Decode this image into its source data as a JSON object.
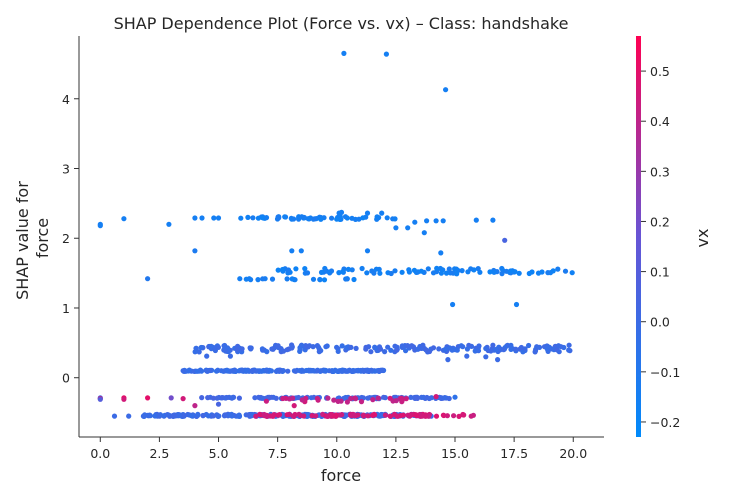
{
  "chart_data": {
    "type": "scatter",
    "title": "SHAP Dependence Plot (Force vs. vx) – Class: handshake",
    "xlabel": "force",
    "ylabel_lines": [
      "SHAP value for",
      "force"
    ],
    "colorbar_label": "vx",
    "xlim": [
      -0.9,
      21.3
    ],
    "ylim": [
      -0.85,
      4.9
    ],
    "x_ticks": [
      0.0,
      2.5,
      5.0,
      7.5,
      10.0,
      12.5,
      15.0,
      17.5,
      20.0
    ],
    "x_tick_labels": [
      "0.0",
      "2.5",
      "5.0",
      "7.5",
      "10.0",
      "12.5",
      "15.0",
      "17.5",
      "20.0"
    ],
    "y_ticks": [
      0,
      1,
      2,
      3,
      4
    ],
    "y_tick_labels": [
      "0",
      "1",
      "2",
      "3",
      "4"
    ],
    "color_range": [
      -0.23,
      0.57
    ],
    "colorbar_ticks": [
      -0.2,
      -0.1,
      0.0,
      0.1,
      0.2,
      0.3,
      0.4,
      0.5
    ],
    "colorbar_tick_labels": [
      "−0.2",
      "−0.1",
      "0.0",
      "0.1",
      "0.2",
      "0.3",
      "0.4",
      "0.5"
    ],
    "colormap": [
      "#008AFA",
      "#6754D5",
      "#FF0052"
    ],
    "grid": false,
    "clusters": [
      {
        "x_min": 3.5,
        "x_max": 12.0,
        "y": 0.1,
        "jitter": 0.01,
        "vx": -0.02,
        "n": 220
      },
      {
        "x_min": 4.0,
        "x_max": 20.3,
        "y": 0.42,
        "jitter": 0.05,
        "vx": 0.0,
        "n": 200
      },
      {
        "x_min": 1.8,
        "x_max": 14.0,
        "y": -0.54,
        "jitter": 0.015,
        "vx": 0.0,
        "n": 260
      },
      {
        "x_min": 6.5,
        "x_max": 15.8,
        "y": -0.54,
        "jitter": 0.015,
        "vx": 0.45,
        "n": 90
      },
      {
        "x_min": 4.2,
        "x_max": 14.8,
        "y": -0.29,
        "jitter": 0.01,
        "vx": 0.02,
        "n": 120
      },
      {
        "x_min": 7.0,
        "x_max": 13.0,
        "y": -0.32,
        "jitter": 0.03,
        "vx": 0.42,
        "n": 30
      },
      {
        "x_min": 5.8,
        "x_max": 12.6,
        "y": 2.29,
        "jitter": 0.02,
        "vx": -0.15,
        "n": 60
      },
      {
        "x_min": 7.5,
        "x_max": 20.0,
        "y": 1.53,
        "jitter": 0.04,
        "vx": -0.15,
        "n": 90
      },
      {
        "x_min": 6.0,
        "x_max": 11.0,
        "y": 1.41,
        "jitter": 0.01,
        "vx": -0.15,
        "n": 18
      }
    ],
    "points": [
      {
        "x": 0.0,
        "y": 2.2,
        "vx": -0.15
      },
      {
        "x": 0.0,
        "y": 2.18,
        "vx": -0.15
      },
      {
        "x": 1.0,
        "y": 2.28,
        "vx": -0.15
      },
      {
        "x": 2.9,
        "y": 2.2,
        "vx": -0.15
      },
      {
        "x": 4.0,
        "y": 2.29,
        "vx": -0.15
      },
      {
        "x": 4.3,
        "y": 2.29,
        "vx": -0.15
      },
      {
        "x": 4.8,
        "y": 2.29,
        "vx": -0.15
      },
      {
        "x": 5.0,
        "y": 2.29,
        "vx": -0.15
      },
      {
        "x": 4.0,
        "y": 1.82,
        "vx": -0.12
      },
      {
        "x": 2.0,
        "y": 1.42,
        "vx": -0.1
      },
      {
        "x": 5.9,
        "y": 1.42,
        "vx": -0.15
      },
      {
        "x": 6.3,
        "y": 1.42,
        "vx": -0.15
      },
      {
        "x": 10.3,
        "y": 4.65,
        "vx": -0.15
      },
      {
        "x": 12.1,
        "y": 4.64,
        "vx": -0.15
      },
      {
        "x": 14.6,
        "y": 4.13,
        "vx": -0.15
      },
      {
        "x": 12.5,
        "y": 2.15,
        "vx": -0.15
      },
      {
        "x": 13.0,
        "y": 2.15,
        "vx": -0.15
      },
      {
        "x": 13.3,
        "y": 2.23,
        "vx": -0.15
      },
      {
        "x": 13.8,
        "y": 2.25,
        "vx": -0.15
      },
      {
        "x": 14.2,
        "y": 2.25,
        "vx": -0.15
      },
      {
        "x": 14.5,
        "y": 2.25,
        "vx": -0.15
      },
      {
        "x": 13.7,
        "y": 2.08,
        "vx": -0.15
      },
      {
        "x": 14.4,
        "y": 1.79,
        "vx": -0.15
      },
      {
        "x": 15.9,
        "y": 2.26,
        "vx": -0.15
      },
      {
        "x": 16.6,
        "y": 2.26,
        "vx": -0.15
      },
      {
        "x": 17.1,
        "y": 1.97,
        "vx": 0.05
      },
      {
        "x": 14.9,
        "y": 1.05,
        "vx": -0.15
      },
      {
        "x": 17.6,
        "y": 1.05,
        "vx": -0.15
      },
      {
        "x": 8.1,
        "y": 1.82,
        "vx": -0.15
      },
      {
        "x": 8.5,
        "y": 1.82,
        "vx": -0.15
      },
      {
        "x": 11.3,
        "y": 1.82,
        "vx": -0.15
      },
      {
        "x": 0.0,
        "y": -0.29,
        "vx": 0.0
      },
      {
        "x": 0.0,
        "y": -0.3,
        "vx": 0.45
      },
      {
        "x": 0.0,
        "y": -0.31,
        "vx": 0.1
      },
      {
        "x": 1.0,
        "y": -0.29,
        "vx": 0.5
      },
      {
        "x": 1.0,
        "y": -0.31,
        "vx": 0.45
      },
      {
        "x": 2.0,
        "y": -0.29,
        "vx": 0.5
      },
      {
        "x": 3.0,
        "y": -0.29,
        "vx": 0.2
      },
      {
        "x": 3.5,
        "y": -0.3,
        "vx": 0.45
      },
      {
        "x": 0.6,
        "y": -0.55,
        "vx": 0.0
      },
      {
        "x": 1.2,
        "y": -0.55,
        "vx": 0.0
      },
      {
        "x": 4.0,
        "y": -0.4,
        "vx": 0.4
      },
      {
        "x": 3.5,
        "y": 0.1,
        "vx": 0.0
      },
      {
        "x": 4.5,
        "y": 0.1,
        "vx": 0.0
      },
      {
        "x": 8.2,
        "y": -0.4,
        "vx": 0.45
      },
      {
        "x": 15.0,
        "y": -0.28,
        "vx": -0.05
      },
      {
        "x": 14.2,
        "y": -0.27,
        "vx": 0.45
      },
      {
        "x": 5.0,
        "y": -0.38,
        "vx": 0.05
      },
      {
        "x": 4.5,
        "y": 0.31,
        "vx": 0.0
      },
      {
        "x": 5.5,
        "y": 0.31,
        "vx": 0.0
      },
      {
        "x": 14.7,
        "y": 0.26,
        "vx": 0.0
      },
      {
        "x": 15.5,
        "y": 0.31,
        "vx": 0.0
      },
      {
        "x": 16.3,
        "y": 0.3,
        "vx": 0.0
      },
      {
        "x": 16.8,
        "y": 0.26,
        "vx": 0.0
      },
      {
        "x": 10.1,
        "y": 2.36,
        "vx": -0.15
      },
      {
        "x": 10.2,
        "y": 2.37,
        "vx": -0.15
      },
      {
        "x": 11.3,
        "y": 2.36,
        "vx": -0.15
      },
      {
        "x": 11.9,
        "y": 2.36,
        "vx": -0.15
      }
    ]
  }
}
